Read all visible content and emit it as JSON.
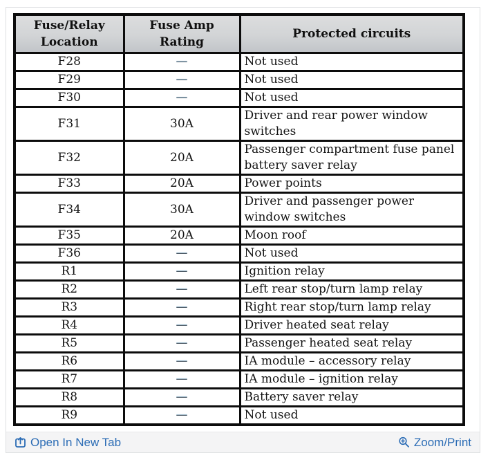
{
  "table": {
    "headers": [
      "Fuse/Relay Location",
      "Fuse Amp Rating",
      "Protected circuits"
    ],
    "rows": [
      [
        "F28",
        "—",
        "Not used"
      ],
      [
        "F29",
        "—",
        "Not used"
      ],
      [
        "F30",
        "—",
        "Not used"
      ],
      [
        "F31",
        "30A",
        "Driver and rear power window switches"
      ],
      [
        "F32",
        "20A",
        "Passenger compartment fuse panel battery saver relay"
      ],
      [
        "F33",
        "20A",
        "Power points"
      ],
      [
        "F34",
        "30A",
        "Driver and passenger power window switches"
      ],
      [
        "F35",
        "20A",
        "Moon roof"
      ],
      [
        "F36",
        "—",
        "Not used"
      ],
      [
        "R1",
        "—",
        "Ignition relay"
      ],
      [
        "R2",
        "—",
        "Left rear stop/turn lamp relay"
      ],
      [
        "R3",
        "—",
        "Right rear stop/turn lamp relay"
      ],
      [
        "R4",
        "—",
        "Driver heated seat relay"
      ],
      [
        "R5",
        "—",
        "Passenger heated seat relay"
      ],
      [
        "R6",
        "—",
        "IA module – accessory relay"
      ],
      [
        "R7",
        "—",
        "IA module – ignition relay"
      ],
      [
        "R8",
        "—",
        "Battery saver relay"
      ],
      [
        "R9",
        "—",
        "Not used"
      ]
    ]
  },
  "footer": {
    "open_in_new_tab_label": "Open In New Tab",
    "zoom_print_label": "Zoom/Print"
  },
  "colors": {
    "link_blue": "#2b6cb5",
    "table_border_black": "#0c0c0c",
    "header_gray_top": "#dcddde",
    "header_gray_bottom": "#c2c5c9",
    "footer_bar_bg": "#f4f4f5"
  }
}
